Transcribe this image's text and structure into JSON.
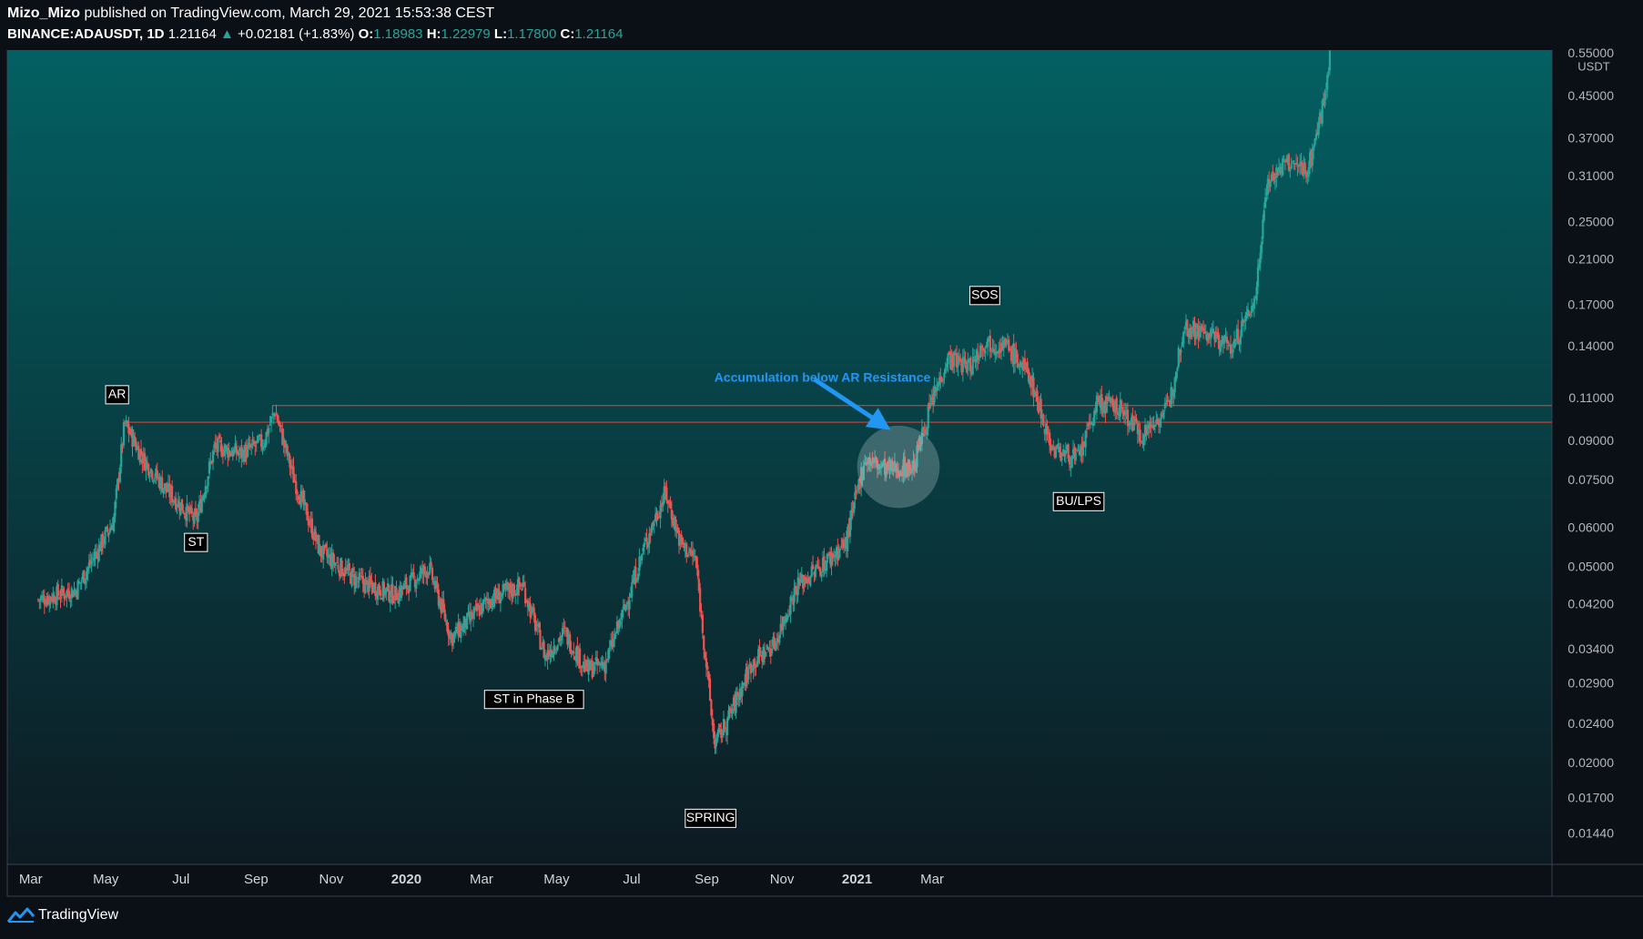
{
  "header": {
    "author": "Mizo_Mizo",
    "published_text": "published on TradingView.com, March 29, 2021 15:53:38 CEST",
    "symbol": "BINANCE:ADAUSDT, 1D",
    "last": "1.21164",
    "change_arrow": "▲",
    "change": "+0.02181 (+1.83%)",
    "o_label": "O:",
    "o": "1.18983",
    "h_label": "H:",
    "h": "1.22979",
    "l_label": "L:",
    "l": "1.17800",
    "c_label": "C:",
    "c": "1.21164"
  },
  "footer": {
    "brand": "TradingView",
    "icon": "tradingview-logo-icon"
  },
  "colors": {
    "up": "#26a69a",
    "down": "#ef5350",
    "bg_top": "#036062",
    "bg_bottom": "#0d1a22",
    "resistance": "#e53935",
    "annotation": "#2196f3"
  },
  "chart_data": {
    "type": "candlestick",
    "title": "BINANCE:ADAUSDT, 1D",
    "scale": "log",
    "currency_label": "USDT",
    "x_ticks": [
      "Mar",
      "May",
      "Jul",
      "Sep",
      "Nov",
      "2020",
      "Mar",
      "May",
      "Jul",
      "Sep",
      "Nov",
      "2021",
      "Mar"
    ],
    "x_ticks_bold": [
      "2020",
      "2021"
    ],
    "y_ticks": [
      "0.55000",
      "0.45000",
      "0.37000",
      "0.31000",
      "0.25000",
      "0.21000",
      "0.17000",
      "0.14000",
      "0.11000",
      "0.09000",
      "0.07500",
      "0.06000",
      "0.05000",
      "0.04200",
      "0.03400",
      "0.02900",
      "0.02400",
      "0.02000",
      "0.01700",
      "0.01440"
    ],
    "ylim": [
      0.0125,
      0.56
    ],
    "resistance_levels": [
      0.1065,
      0.0985
    ],
    "price_path_months": [
      {
        "m": 0,
        "p": 0.043
      },
      {
        "m": 1,
        "p": 0.045
      },
      {
        "m": 2,
        "p": 0.062
      },
      {
        "m": 2.3,
        "p": 0.098
      },
      {
        "m": 2.8,
        "p": 0.083
      },
      {
        "m": 3.4,
        "p": 0.072
      },
      {
        "m": 4.2,
        "p": 0.062
      },
      {
        "m": 4.7,
        "p": 0.088
      },
      {
        "m": 5.4,
        "p": 0.085
      },
      {
        "m": 6.0,
        "p": 0.09
      },
      {
        "m": 6.3,
        "p": 0.104
      },
      {
        "m": 6.8,
        "p": 0.076
      },
      {
        "m": 7.5,
        "p": 0.054
      },
      {
        "m": 8.5,
        "p": 0.047
      },
      {
        "m": 9.5,
        "p": 0.044
      },
      {
        "m": 10.4,
        "p": 0.05
      },
      {
        "m": 11.0,
        "p": 0.036
      },
      {
        "m": 12.0,
        "p": 0.043
      },
      {
        "m": 12.9,
        "p": 0.046
      },
      {
        "m": 13.5,
        "p": 0.033
      },
      {
        "m": 14.0,
        "p": 0.037
      },
      {
        "m": 14.6,
        "p": 0.031
      },
      {
        "m": 15.1,
        "p": 0.032
      },
      {
        "m": 15.6,
        "p": 0.041
      },
      {
        "m": 16.2,
        "p": 0.057
      },
      {
        "m": 16.7,
        "p": 0.071
      },
      {
        "m": 17.1,
        "p": 0.056
      },
      {
        "m": 17.5,
        "p": 0.052
      },
      {
        "m": 18.0,
        "p": 0.022
      },
      {
        "m": 18.3,
        "p": 0.024
      },
      {
        "m": 19.0,
        "p": 0.032
      },
      {
        "m": 19.6,
        "p": 0.035
      },
      {
        "m": 20.2,
        "p": 0.046
      },
      {
        "m": 20.8,
        "p": 0.05
      },
      {
        "m": 21.5,
        "p": 0.056
      },
      {
        "m": 22.0,
        "p": 0.083
      },
      {
        "m": 22.6,
        "p": 0.079
      },
      {
        "m": 23.3,
        "p": 0.08
      },
      {
        "m": 23.7,
        "p": 0.103
      },
      {
        "m": 24.2,
        "p": 0.133
      },
      {
        "m": 24.8,
        "p": 0.128
      },
      {
        "m": 25.2,
        "p": 0.144
      },
      {
        "m": 25.8,
        "p": 0.14
      },
      {
        "m": 26.4,
        "p": 0.122
      },
      {
        "m": 27.0,
        "p": 0.087
      },
      {
        "m": 27.7,
        "p": 0.083
      },
      {
        "m": 28.2,
        "p": 0.108
      },
      {
        "m": 28.8,
        "p": 0.105
      },
      {
        "m": 29.4,
        "p": 0.093
      },
      {
        "m": 30.1,
        "p": 0.106
      },
      {
        "m": 30.5,
        "p": 0.155
      },
      {
        "m": 31.2,
        "p": 0.148
      },
      {
        "m": 31.8,
        "p": 0.14
      },
      {
        "m": 32.4,
        "p": 0.175
      },
      {
        "m": 32.7,
        "p": 0.3
      },
      {
        "m": 33.2,
        "p": 0.33
      },
      {
        "m": 33.8,
        "p": 0.32
      },
      {
        "m": 34.2,
        "p": 0.43
      },
      {
        "m": 34.4,
        "p": 0.56
      }
    ],
    "labels": [
      {
        "text": "AR",
        "price": 0.112,
        "month": 2.1
      },
      {
        "text": "ST",
        "price": 0.0562,
        "month": 4.2
      },
      {
        "text": "ST in Phase B",
        "price": 0.027,
        "month": 13.2
      },
      {
        "text": "SPRING",
        "price": 0.0155,
        "month": 17.9
      },
      {
        "text": "SOS",
        "price": 0.178,
        "month": 25.2
      },
      {
        "text": "BU/LPS",
        "price": 0.068,
        "month": 27.7
      }
    ],
    "annotation": {
      "text": "Accumulation below AR Resistance",
      "price": 0.121,
      "month": 18.0
    },
    "highlight_circle": {
      "month": 22.9,
      "price": 0.08,
      "price_radius_top": 0.097
    }
  }
}
